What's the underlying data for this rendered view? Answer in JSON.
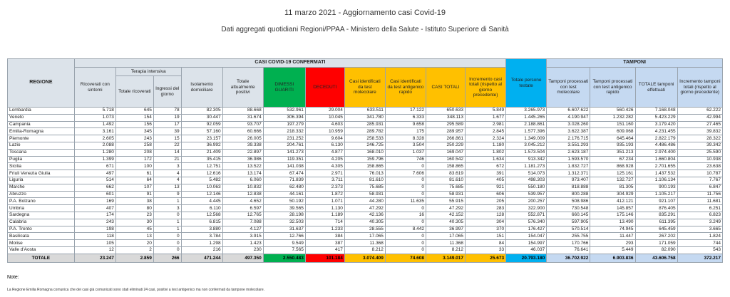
{
  "header": {
    "title": "11 marzo 2021 - Aggiornamento casi Covid-19",
    "subtitle": "Dati aggregati quotidiani Regioni/PPAA - Ministero della Salute - Istituto Superiore di Sanità"
  },
  "table": {
    "group_headers": {
      "casi": "CASI COVID-19 CONFERMATI",
      "terapia": "Terapia intensiva",
      "tamponi": "TAMPONI"
    },
    "columns": [
      "REGIONE",
      "Ricoverati con sintomi",
      "Totale ricoverati",
      "Ingressi del giorno",
      "Isolamento domiciliare",
      "Totale attualmente positivi",
      "DIMESSI GUARITI",
      "DECEDUTI",
      "Casi identificati da test molecolare",
      "Casi identificati da test antigenico rapido",
      "CASI TOTALI",
      "Incremento casi totali (rispetto al giorno precedente)",
      "Totale persone testate",
      "Tamponi processati con test molecolare",
      "Tamponi processati con test antigenico rapido",
      "TOTALE tamponi effettuati",
      "Incremento tamponi totali (rispetto al giorno precedente)"
    ],
    "rows": [
      [
        "Lombardia",
        "5.718",
        "645",
        "78",
        "82.305",
        "88.668",
        "532.961",
        "29.004",
        "633.511",
        "17.122",
        "650.633",
        "5.849",
        "3.265.973",
        "6.607.622",
        "560.426",
        "7.168.048",
        "62.222"
      ],
      [
        "Veneto",
        "1.073",
        "154",
        "19",
        "30.447",
        "31.674",
        "306.394",
        "10.045",
        "341.780",
        "6.333",
        "348.113",
        "1.677",
        "1.445.265",
        "4.190.947",
        "1.232.282",
        "5.423.229",
        "42.994"
      ],
      [
        "Campania",
        "1.492",
        "156",
        "17",
        "92.059",
        "93.707",
        "197.279",
        "4.603",
        "285.931",
        "9.658",
        "295.589",
        "2.981",
        "2.188.861",
        "3.028.260",
        "151.160",
        "3.179.420",
        "27.465"
      ],
      [
        "Emilia-Romagna",
        "3.161",
        "345",
        "39",
        "57.160",
        "60.666",
        "218.332",
        "10.959",
        "289.782",
        "175",
        "289.957",
        "2.845",
        "1.577.396",
        "3.622.387",
        "609.068",
        "4.231.455",
        "39.832"
      ],
      [
        "Piemonte",
        "2.605",
        "243",
        "15",
        "23.157",
        "26.005",
        "231.252",
        "9.604",
        "258.533",
        "8.328",
        "266.861",
        "2.324",
        "1.349.009",
        "2.176.715",
        "645.464",
        "2.822.179",
        "28.322"
      ],
      [
        "Lazio",
        "2.088",
        "258",
        "22",
        "36.992",
        "39.338",
        "204.761",
        "6.130",
        "246.725",
        "3.504",
        "250.229",
        "1.180",
        "3.045.212",
        "3.551.293",
        "935.193",
        "4.486.486",
        "39.342"
      ],
      [
        "Toscana",
        "1.280",
        "208",
        "14",
        "21.409",
        "22.897",
        "141.273",
        "4.877",
        "168.010",
        "1.037",
        "169.047",
        "1.802",
        "1.573.504",
        "2.623.187",
        "351.213",
        "2.974.400",
        "25.590"
      ],
      [
        "Puglia",
        "1.399",
        "172",
        "21",
        "35.415",
        "36.986",
        "119.351",
        "4.205",
        "159.796",
        "746",
        "160.542",
        "1.634",
        "913.342",
        "1.593.570",
        "67.234",
        "1.660.804",
        "10.938"
      ],
      [
        "Sicilia",
        "671",
        "100",
        "3",
        "12.751",
        "13.522",
        "141.038",
        "4.305",
        "158.865",
        "0",
        "158.865",
        "672",
        "1.181.273",
        "1.832.727",
        "868.928",
        "2.701.655",
        "23.638"
      ],
      [
        "Friuli Venezia Giulia",
        "497",
        "61",
        "4",
        "12.616",
        "13.174",
        "67.474",
        "2.971",
        "76.013",
        "7.606",
        "83.619",
        "391",
        "514.073",
        "1.312.371",
        "125.161",
        "1.437.532",
        "10.787"
      ],
      [
        "Liguria",
        "514",
        "64",
        "4",
        "5.482",
        "6.060",
        "71.839",
        "3.711",
        "81.610",
        "0",
        "81.610",
        "405",
        "498.303",
        "973.407",
        "132.727",
        "1.106.134",
        "7.767"
      ],
      [
        "Marche",
        "662",
        "107",
        "13",
        "10.063",
        "10.832",
        "62.480",
        "2.373",
        "75.685",
        "0",
        "75.685",
        "921",
        "550.180",
        "818.888",
        "81.305",
        "900.193",
        "6.847"
      ],
      [
        "Abruzzo",
        "601",
        "91",
        "9",
        "12.146",
        "12.838",
        "44.161",
        "1.872",
        "58.931",
        "0",
        "58.931",
        "606",
        "539.957",
        "800.288",
        "304.929",
        "1.105.217",
        "11.756"
      ],
      [
        "P.A. Bolzano",
        "169",
        "38",
        "1",
        "4.445",
        "4.652",
        "50.192",
        "1.071",
        "44.280",
        "11.635",
        "55.915",
        "205",
        "200.257",
        "508.986",
        "412.121",
        "921.107",
        "11.681"
      ],
      [
        "Umbria",
        "407",
        "80",
        "3",
        "6.110",
        "6.597",
        "39.565",
        "1.130",
        "47.292",
        "0",
        "47.292",
        "283",
        "322.900",
        "730.548",
        "145.857",
        "876.405",
        "6.251"
      ],
      [
        "Sardegna",
        "174",
        "23",
        "0",
        "12.568",
        "12.765",
        "28.198",
        "1.189",
        "42.136",
        "16",
        "42.152",
        "128",
        "552.871",
        "660.145",
        "175.146",
        "835.291",
        "6.823"
      ],
      [
        "Calabria",
        "243",
        "30",
        "1",
        "6.815",
        "7.088",
        "32.503",
        "714",
        "40.305",
        "0",
        "40.305",
        "304",
        "576.340",
        "597.905",
        "13.490",
        "611.395",
        "3.249"
      ],
      [
        "P.A. Trento",
        "198",
        "45",
        "1",
        "3.880",
        "4.127",
        "31.637",
        "1.233",
        "28.555",
        "8.442",
        "36.997",
        "370",
        "176.427",
        "570.514",
        "74.945",
        "645.459",
        "3.665"
      ],
      [
        "Basilicata",
        "118",
        "13",
        "0",
        "3.784",
        "3.915",
        "12.766",
        "384",
        "17.065",
        "0",
        "17.065",
        "151",
        "154.047",
        "255.755",
        "11.447",
        "267.202",
        "1.824"
      ],
      [
        "Molise",
        "105",
        "20",
        "0",
        "1.298",
        "1.423",
        "9.549",
        "387",
        "11.368",
        "0",
        "11.368",
        "84",
        "154.997",
        "170.766",
        "293",
        "171.059",
        "744"
      ],
      [
        "Valle d'Aosta",
        "12",
        "2",
        "0",
        "216",
        "230",
        "7.565",
        "417",
        "8.212",
        "0",
        "8.212",
        "33",
        "46.037",
        "76.641",
        "5.449",
        "82.090",
        "543"
      ]
    ],
    "total": [
      "TOTALE",
      "23.247",
      "2.859",
      "266",
      "471.244",
      "497.350",
      "2.550.483",
      "101.184",
      "3.074.409",
      "74.608",
      "3.149.017",
      "25.673",
      "20.793.180",
      "36.702.922",
      "6.903.836",
      "43.606.758",
      "372.217"
    ]
  },
  "note": {
    "label": "Note:",
    "text": "La Regione Emilia Romagna comunica che dei casi già comunicati sono stati eliminati 24 casi, positivi a test antigenico ma non confermati da tampone molecolare."
  }
}
